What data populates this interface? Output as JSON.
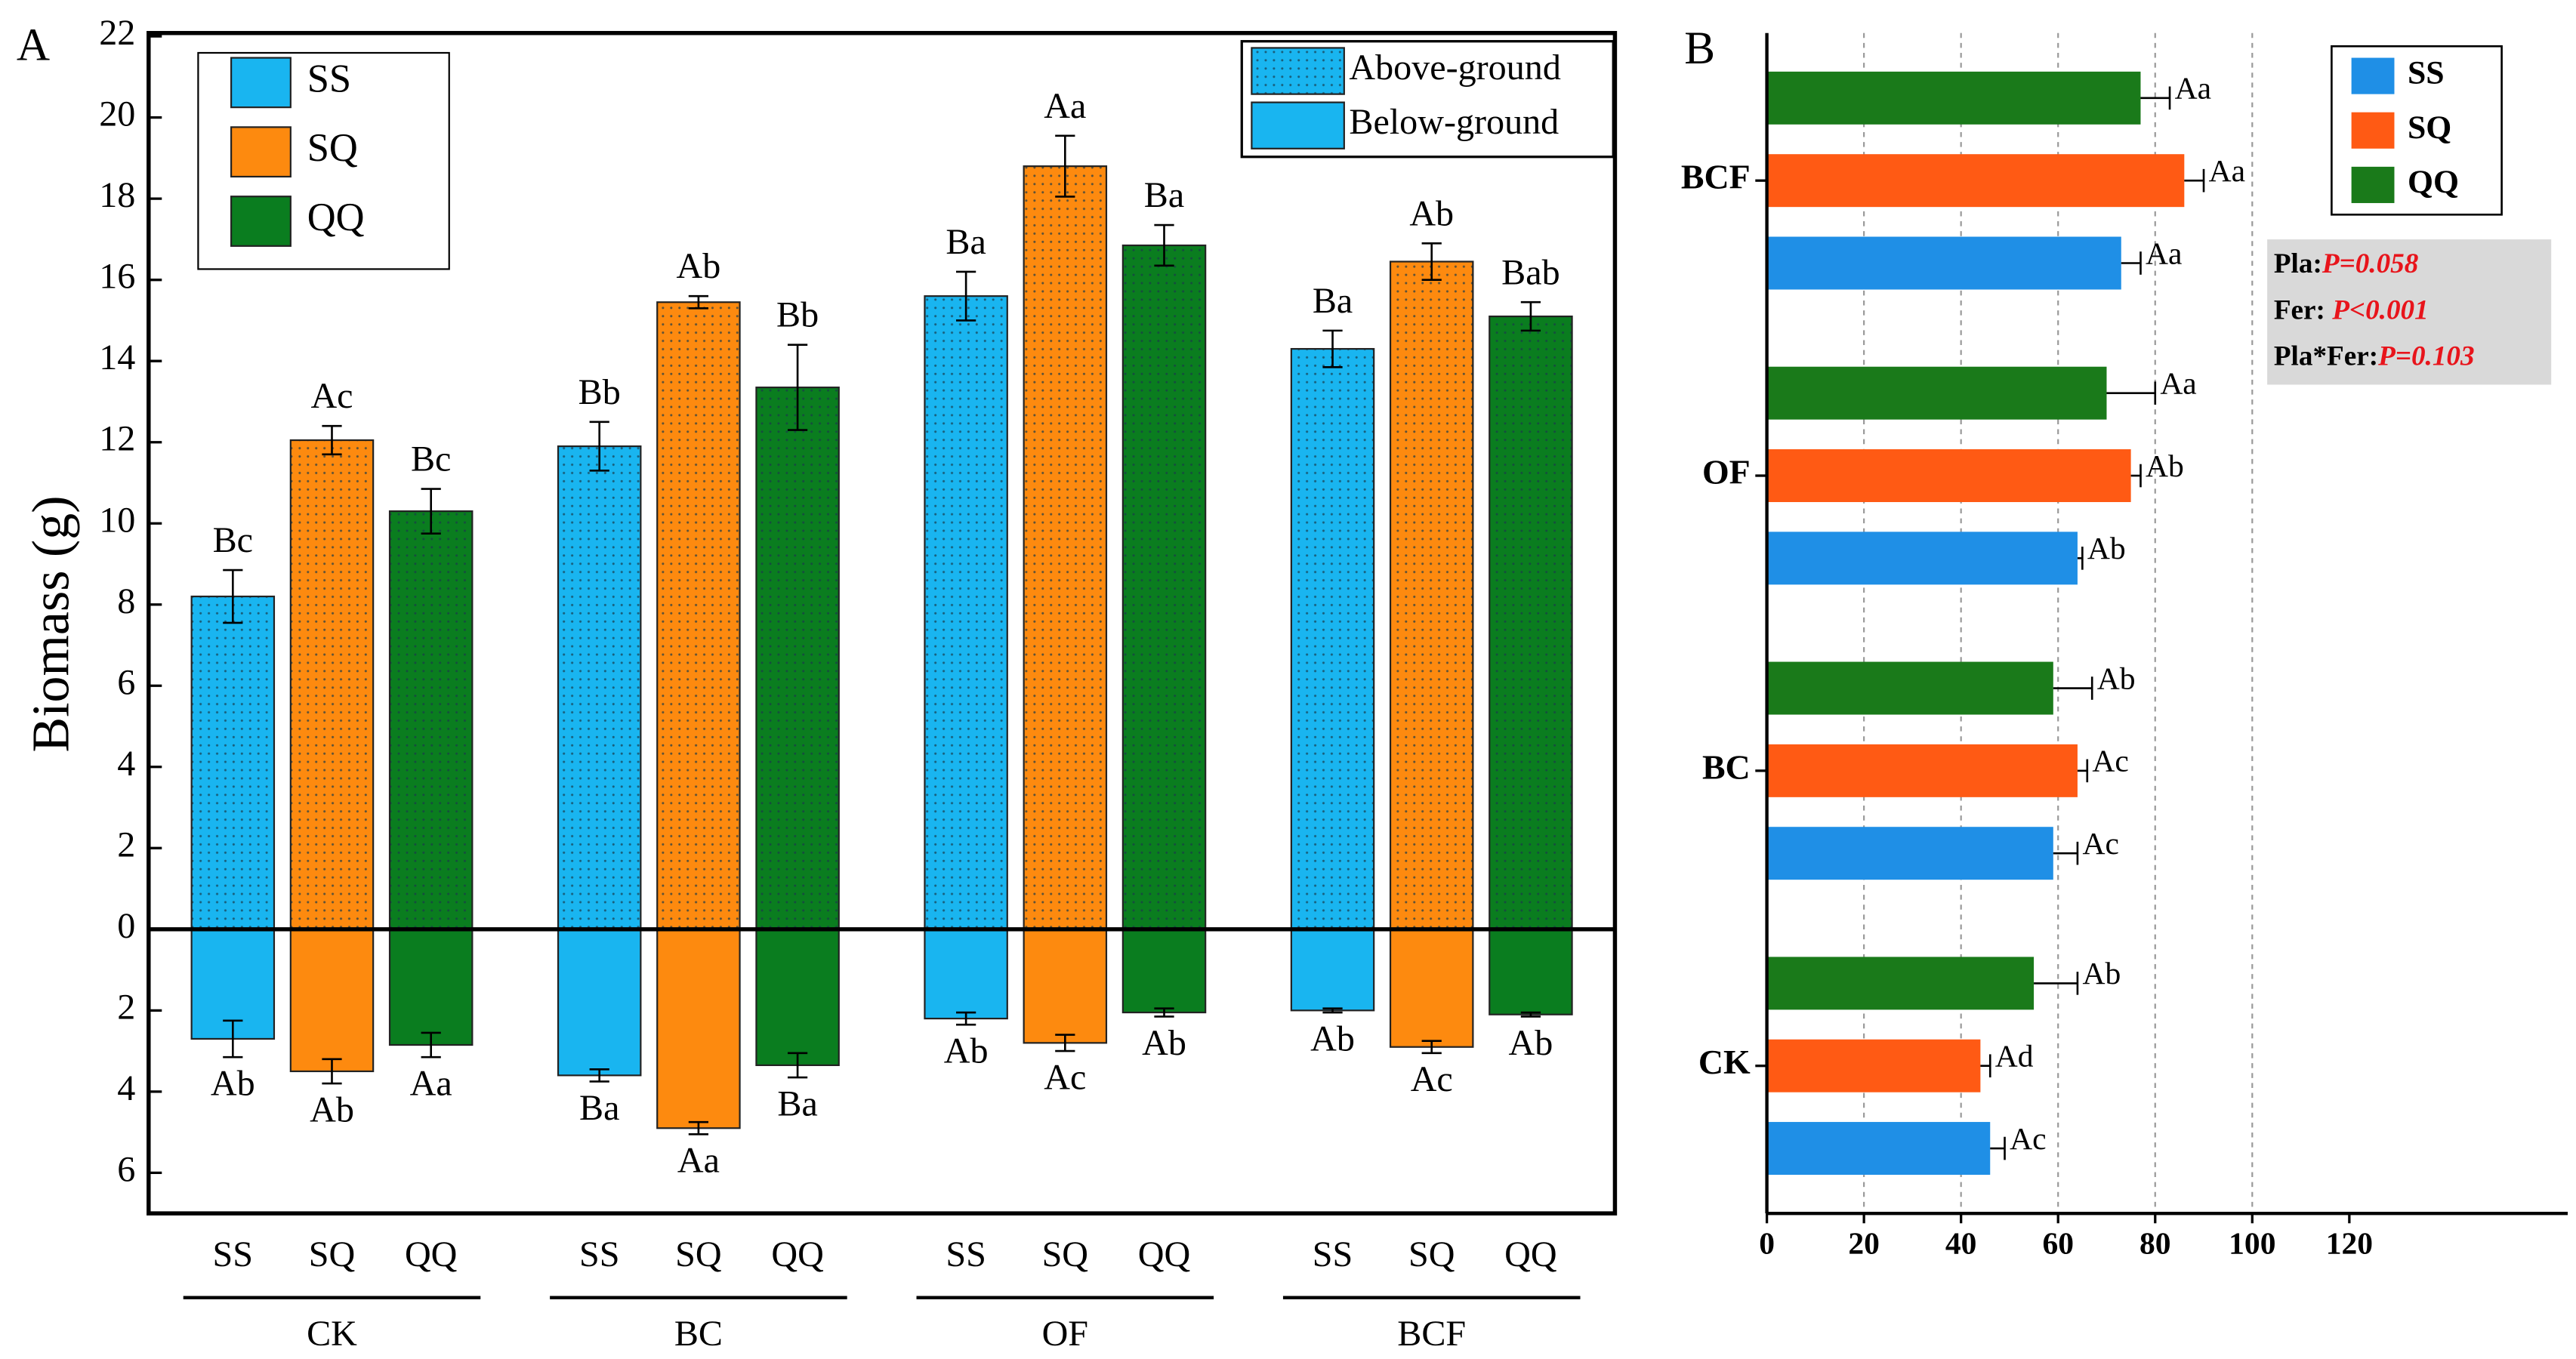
{
  "chart_data": [
    {
      "type": "bar",
      "panel_label": "A",
      "ylabel": "Biomass (g)",
      "categories": [
        "CK",
        "BC",
        "OF",
        "BCF"
      ],
      "series": [
        {
          "name": "SS",
          "color": "#19b5f0",
          "above": [
            8.2,
            11.9,
            15.6,
            14.3
          ],
          "above_err": [
            0.65,
            0.6,
            0.6,
            0.45
          ],
          "above_labels": [
            "Bc",
            "Bb",
            "Ba",
            "Ba"
          ],
          "below": [
            -2.7,
            -3.6,
            -2.2,
            -2.0
          ],
          "below_err": [
            0.45,
            0.15,
            0.15,
            0.05
          ],
          "below_labels": [
            "Ab",
            "Ba",
            "Ab",
            "Ab"
          ]
        },
        {
          "name": "SQ",
          "color": "#fd8a0f",
          "above": [
            12.05,
            15.45,
            18.8,
            16.45
          ],
          "above_err": [
            0.35,
            0.15,
            0.75,
            0.45
          ],
          "above_labels": [
            "Ac",
            "Ab",
            "Aa",
            "Ab"
          ],
          "below": [
            -3.5,
            -4.9,
            -2.8,
            -2.9
          ],
          "below_err": [
            0.3,
            0.15,
            0.2,
            0.15
          ],
          "below_labels": [
            "Ab",
            "Aa",
            "Ac",
            "Ac"
          ]
        },
        {
          "name": "QQ",
          "color": "#0a7d1f",
          "above": [
            10.3,
            13.35,
            16.85,
            15.1
          ],
          "above_err": [
            0.55,
            1.05,
            0.5,
            0.35
          ],
          "above_labels": [
            "Bc",
            "Bb",
            "Ba",
            "Bab"
          ],
          "below": [
            -2.85,
            -3.35,
            -2.05,
            -2.1
          ],
          "below_err": [
            0.3,
            0.3,
            0.1,
            0.05
          ],
          "below_labels": [
            "Aa",
            "Ba",
            "Ab",
            "Ab"
          ]
        }
      ],
      "ylim": [
        -7,
        22
      ],
      "yticks": [
        {
          "value": -6,
          "label": "6"
        },
        {
          "value": -4,
          "label": "4"
        },
        {
          "value": -2,
          "label": "2"
        },
        0,
        2,
        4,
        6,
        8,
        10,
        12,
        14,
        16,
        18,
        20,
        22
      ],
      "pattern_legend": [
        "Above-ground",
        "Below-ground"
      ]
    },
    {
      "type": "hbar",
      "panel_label": "B",
      "categories": [
        "CK",
        "BC",
        "OF",
        "BCF"
      ],
      "series": [
        {
          "name": "SS",
          "color": "#1f8fe6",
          "values": [
            46,
            59,
            64,
            73
          ],
          "errors": [
            3,
            5,
            1,
            4
          ],
          "labels": [
            "Ac",
            "Ac",
            "Ab",
            "Aa"
          ]
        },
        {
          "name": "SQ",
          "color": "#ff5a14",
          "values": [
            44,
            64,
            75,
            86
          ],
          "errors": [
            2,
            2,
            2,
            4
          ],
          "labels": [
            "Ad",
            "Ac",
            "Ab",
            "Aa"
          ]
        },
        {
          "name": "QQ",
          "color": "#1a7a1a",
          "values": [
            55,
            59,
            70,
            77
          ],
          "errors": [
            9,
            8,
            10,
            6
          ],
          "labels": [
            "Ab",
            "Ab",
            "Aa",
            "Aa"
          ]
        }
      ],
      "xlim": [
        0,
        165
      ],
      "xticks": [
        0,
        20,
        40,
        60,
        80,
        100,
        120
      ],
      "xgrid": [
        20,
        40,
        60,
        80,
        100
      ],
      "stats": [
        {
          "factor": "Pla:",
          "p": "P=0.058"
        },
        {
          "factor": "Fer: ",
          "p": "P<0.001"
        },
        {
          "factor": "Pla*Fer:",
          "p": "P=0.103"
        }
      ]
    }
  ]
}
